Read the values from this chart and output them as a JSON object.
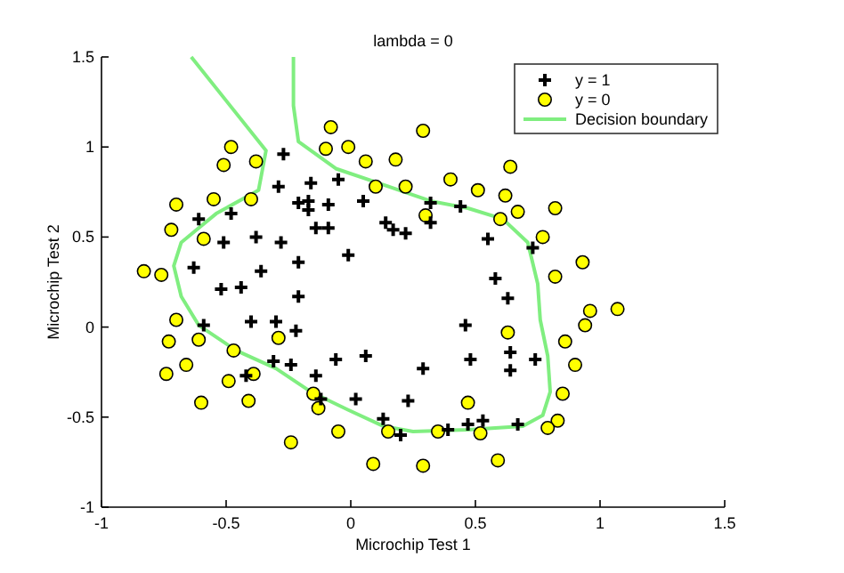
{
  "chart_data": {
    "type": "scatter",
    "title": "lambda = 0",
    "xlabel": "Microchip Test 1",
    "ylabel": "Microchip Test 2",
    "xlim": [
      -1,
      1.5
    ],
    "ylim": [
      -1,
      1.5
    ],
    "xticks": [
      -1,
      -0.5,
      0,
      0.5,
      1,
      1.5
    ],
    "yticks": [
      -1,
      -0.5,
      0,
      0.5,
      1,
      1.5
    ],
    "grid": false,
    "legend": "top right",
    "series": [
      {
        "name": "y = 1",
        "marker": "cross",
        "color": "#000000",
        "x": [
          0.05,
          -0.09,
          -0.21,
          -0.38,
          -0.51,
          -0.52,
          -0.4,
          -0.31,
          0.02,
          0.13,
          0.39,
          0.53,
          0.64,
          0.74,
          0.55,
          0.32,
          0.17,
          -0.05,
          -0.17,
          -0.48,
          -0.61,
          -0.63,
          -0.59,
          -0.42,
          -0.12,
          0.2,
          0.47,
          0.67,
          -0.14,
          -0.29,
          -0.27,
          -0.16,
          -0.17,
          -0.28,
          -0.36,
          -0.3,
          -0.24,
          -0.06,
          0.06,
          0.23,
          0.29,
          0.48,
          0.64,
          0.46,
          0.63,
          0.58,
          0.73,
          0.22,
          0.44,
          0.32,
          0.14,
          -0.01,
          -0.09,
          -0.21,
          -0.21,
          -0.44,
          -0.22,
          -0.14
        ],
        "values": [
          0.7,
          0.68,
          0.69,
          0.5,
          0.47,
          0.21,
          0.03,
          -0.19,
          -0.4,
          -0.51,
          -0.57,
          -0.52,
          -0.24,
          -0.18,
          0.49,
          0.58,
          0.54,
          0.82,
          0.7,
          0.63,
          0.6,
          0.33,
          0.01,
          -0.27,
          -0.4,
          -0.6,
          -0.54,
          -0.54,
          0.55,
          0.78,
          0.96,
          0.8,
          0.65,
          0.47,
          0.31,
          0.03,
          -0.21,
          -0.18,
          -0.16,
          -0.41,
          -0.23,
          -0.18,
          -0.14,
          0.01,
          0.16,
          0.27,
          0.44,
          0.52,
          0.67,
          0.69,
          0.58,
          0.4,
          0.55,
          0.36,
          0.17,
          0.22,
          -0.02,
          -0.27
        ]
      },
      {
        "name": "y = 0",
        "marker": "circle",
        "color": "#ffff00",
        "x": [
          0.18,
          0.22,
          0.3,
          0.51,
          0.62,
          0.6,
          0.77,
          0.93,
          0.82,
          0.96,
          0.94,
          0.86,
          0.9,
          0.85,
          0.83,
          0.79,
          0.59,
          0.52,
          0.47,
          0.35,
          0.29,
          0.09,
          0.15,
          -0.13,
          -0.41,
          -0.39,
          -0.74,
          -0.7,
          -0.76,
          -0.7,
          -0.4,
          -0.38,
          -0.51,
          -0.55,
          0.1,
          0.06,
          -0.1,
          -0.08,
          0.29,
          0.4,
          0.64,
          0.82,
          0.67,
          1.07,
          -0.05,
          -0.24,
          -0.15,
          -0.49,
          -0.47,
          -0.29,
          -0.61,
          -0.66,
          -0.6,
          -0.73,
          -0.83,
          -0.72,
          -0.59,
          -0.48,
          -0.01,
          0.63
        ],
        "values": [
          0.93,
          0.78,
          0.62,
          0.76,
          0.73,
          0.6,
          0.5,
          0.36,
          0.28,
          0.09,
          0.01,
          -0.08,
          -0.21,
          -0.37,
          -0.52,
          -0.56,
          -0.74,
          -0.59,
          -0.42,
          -0.58,
          -0.77,
          -0.76,
          -0.58,
          -0.45,
          -0.41,
          -0.26,
          -0.26,
          0.04,
          0.29,
          0.68,
          0.71,
          0.92,
          0.9,
          0.71,
          0.78,
          0.92,
          0.99,
          1.11,
          1.09,
          0.82,
          0.89,
          0.66,
          0.64,
          0.1,
          -0.58,
          -0.64,
          -0.37,
          -0.3,
          -0.13,
          -0.06,
          -0.07,
          -0.21,
          -0.42,
          -0.08,
          0.31,
          0.54,
          0.49,
          1,
          1,
          -0.03
        ]
      },
      {
        "name": "Decision boundary",
        "type": "line",
        "line_style": "solid",
        "color": "#80ee80",
        "x": [
          -0.23,
          -0.23,
          -0.21,
          -0.06,
          0.11,
          0.32,
          0.47,
          0.61,
          0.71,
          0.75,
          0.76,
          0.79,
          0.8,
          0.77,
          0.69,
          0.47,
          0.25,
          0.13,
          -0.01,
          -0.16,
          -0.3,
          -0.46,
          -0.61,
          -0.68,
          -0.71,
          -0.68,
          -0.54,
          -0.37,
          -0.34,
          -0.64
        ],
        "values": [
          1.5,
          1.23,
          1.03,
          0.88,
          0.8,
          0.7,
          0.66,
          0.6,
          0.47,
          0.24,
          0.04,
          -0.16,
          -0.36,
          -0.49,
          -0.55,
          -0.57,
          -0.58,
          -0.55,
          -0.46,
          -0.36,
          -0.23,
          -0.13,
          0.01,
          0.17,
          0.34,
          0.47,
          0.63,
          0.76,
          0.98,
          1.5
        ]
      }
    ]
  }
}
